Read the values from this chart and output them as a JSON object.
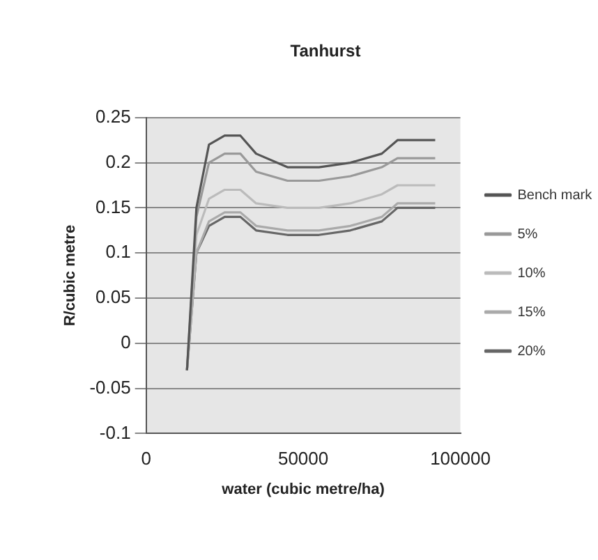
{
  "chart_data": {
    "type": "line",
    "title": "Tanhurst",
    "xlabel": "water (cubic metre/ha)",
    "ylabel": "R/cubic metre",
    "x": [
      13000,
      16000,
      20000,
      25000,
      30000,
      35000,
      45000,
      55000,
      65000,
      75000,
      80000,
      92000
    ],
    "series": [
      {
        "name": "Bench mark",
        "color": "#555555",
        "values": [
          -0.03,
          0.15,
          0.22,
          0.23,
          0.23,
          0.21,
          0.195,
          0.195,
          0.2,
          0.21,
          0.225,
          0.225
        ]
      },
      {
        "name": "5%",
        "color": "#999999",
        "values": [
          -0.03,
          0.14,
          0.2,
          0.21,
          0.21,
          0.19,
          0.18,
          0.18,
          0.185,
          0.195,
          0.205,
          0.205
        ]
      },
      {
        "name": "10%",
        "color": "#bbbbbb",
        "values": [
          -0.03,
          0.12,
          0.16,
          0.17,
          0.17,
          0.155,
          0.15,
          0.15,
          0.155,
          0.165,
          0.175,
          0.175
        ]
      },
      {
        "name": "15%",
        "color": "#aaaaaa",
        "values": [
          -0.03,
          0.1,
          0.135,
          0.145,
          0.145,
          0.13,
          0.125,
          0.125,
          0.13,
          0.14,
          0.155,
          0.155
        ]
      },
      {
        "name": "20%",
        "color": "#666666",
        "values": [
          -0.03,
          0.1,
          0.13,
          0.14,
          0.14,
          0.125,
          0.12,
          0.12,
          0.125,
          0.135,
          0.15,
          0.15
        ]
      }
    ],
    "xlim": [
      0,
      100000
    ],
    "xticks": [
      0,
      50000,
      100000
    ],
    "ylim": [
      -0.1,
      0.25
    ],
    "yticks": [
      -0.1,
      -0.05,
      0,
      0.05,
      0.1,
      0.15,
      0.2,
      0.25
    ],
    "grid": "y",
    "legend": "right",
    "marker": "none",
    "line_style": "solid"
  }
}
